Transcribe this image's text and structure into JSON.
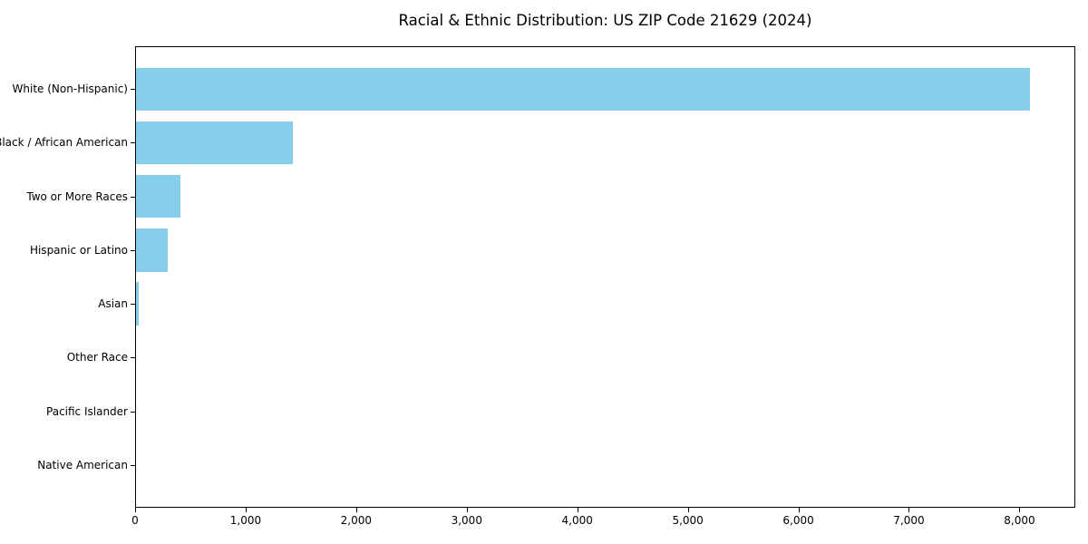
{
  "chart_data": {
    "type": "bar",
    "orientation": "horizontal",
    "title": "Racial & Ethnic Distribution: US ZIP Code 21629 (2024)",
    "categories": [
      "White (Non-Hispanic)",
      "Black / African American",
      "Two or More Races",
      "Hispanic or Latino",
      "Asian",
      "Other Race",
      "Pacific Islander",
      "Native American"
    ],
    "values": [
      8100,
      1420,
      400,
      290,
      25,
      0,
      0,
      0
    ],
    "xlabel": "",
    "ylabel": "",
    "xlim": [
      0,
      8505
    ],
    "xticks": [
      0,
      1000,
      2000,
      3000,
      4000,
      5000,
      6000,
      7000,
      8000
    ],
    "xtick_labels": [
      "0",
      "1,000",
      "2,000",
      "3,000",
      "4,000",
      "5,000",
      "6,000",
      "7,000",
      "8,000"
    ],
    "grid": false,
    "legend_position": "none",
    "bar_color": "#87CEEB",
    "axis_color": "#000000",
    "text_color": "#000000",
    "background_color": "#FFFFFF"
  }
}
